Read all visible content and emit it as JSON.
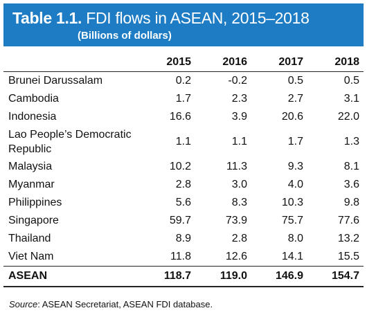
{
  "header": {
    "table_num": "Table 1.1.",
    "title": "FDI flows in ASEAN, 2015–2018",
    "subtitle": "(Billions of dollars)"
  },
  "columns": [
    "",
    "2015",
    "2016",
    "2017",
    "2018"
  ],
  "rows": [
    {
      "country": "Brunei Darussalam",
      "values": [
        "0.2",
        "-0.2",
        "0.5",
        "0.5"
      ]
    },
    {
      "country": "Cambodia",
      "values": [
        "1.7",
        "2.3",
        "2.7",
        "3.1"
      ]
    },
    {
      "country": "Indonesia",
      "values": [
        "16.6",
        "3.9",
        "20.6",
        "22.0"
      ]
    },
    {
      "country": "Lao People’s Democratic Republic",
      "country_line1": "Lao People’s Democratic",
      "country_line2": "Republic",
      "values": [
        "1.1",
        "1.1",
        "1.7",
        "1.3"
      ]
    },
    {
      "country": "Malaysia",
      "values": [
        "10.2",
        "11.3",
        "9.3",
        "8.1"
      ]
    },
    {
      "country": "Myanmar",
      "values": [
        "2.8",
        "3.0",
        "4.0",
        "3.6"
      ]
    },
    {
      "country": "Philippines",
      "values": [
        "5.6",
        "8.3",
        "10.3",
        "9.8"
      ]
    },
    {
      "country": "Singapore",
      "values": [
        "59.7",
        "73.9",
        "75.7",
        "77.6"
      ]
    },
    {
      "country": "Thailand",
      "values": [
        "8.9",
        "2.8",
        "8.0",
        "13.2"
      ]
    },
    {
      "country": "Viet Nam",
      "values": [
        "11.8",
        "12.6",
        "14.1",
        "15.5"
      ]
    }
  ],
  "total": {
    "country": "ASEAN",
    "values": [
      "118.7",
      "119.0",
      "146.9",
      "154.7"
    ]
  },
  "source": {
    "label": "Source",
    "text": ": ASEAN Secretariat, ASEAN FDI database."
  },
  "colors": {
    "header_bg": "#1e7cc4",
    "header_text": "#ffffff"
  }
}
